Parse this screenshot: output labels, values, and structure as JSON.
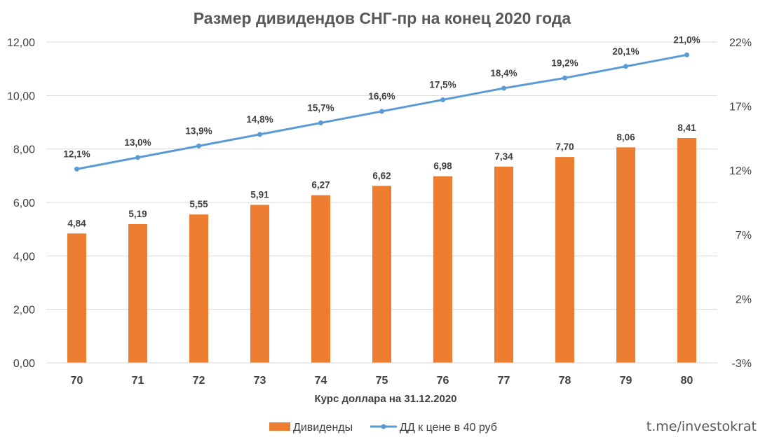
{
  "chart_data": {
    "type": "bar",
    "title": "Размер дивидендов СНГ-пр на конец 2020 года",
    "xlabel": "Курс доллара на 31.12.2020",
    "categories": [
      "70",
      "71",
      "72",
      "73",
      "74",
      "75",
      "76",
      "77",
      "78",
      "79",
      "80"
    ],
    "series": [
      {
        "name": "Дивиденды",
        "type": "bar",
        "axis": "left",
        "color": "#ED7D31",
        "values": [
          4.84,
          5.19,
          5.55,
          5.91,
          6.27,
          6.62,
          6.98,
          7.34,
          7.7,
          8.06,
          8.41
        ],
        "labels": [
          "4,84",
          "5,19",
          "5,55",
          "5,91",
          "6,27",
          "6,62",
          "6,98",
          "7,34",
          "7,70",
          "8,06",
          "8,41"
        ]
      },
      {
        "name": "ДД к цене в 40 руб",
        "type": "line",
        "axis": "right",
        "color": "#5B9BD5",
        "values": [
          12.1,
          13.0,
          13.9,
          14.8,
          15.7,
          16.6,
          17.5,
          18.4,
          19.2,
          20.1,
          21.0
        ],
        "labels": [
          "12,1%",
          "13,0%",
          "13,9%",
          "14,8%",
          "15,7%",
          "16,6%",
          "17,5%",
          "18,4%",
          "19,2%",
          "20,1%",
          "21,0%"
        ]
      }
    ],
    "y_left": {
      "range": [
        0,
        12
      ],
      "ticks": [
        0,
        2,
        4,
        6,
        8,
        10,
        12
      ],
      "tick_labels": [
        "0,00",
        "2,00",
        "4,00",
        "6,00",
        "8,00",
        "10,00",
        "12,00"
      ]
    },
    "y_right": {
      "range": [
        -3,
        22
      ],
      "ticks": [
        -3,
        2,
        7,
        12,
        17,
        22
      ],
      "tick_labels": [
        "-3%",
        "2%",
        "7%",
        "12%",
        "17%",
        "22%"
      ]
    },
    "grid": true,
    "legend_position": "bottom"
  },
  "watermark": "t.me/investokrat"
}
